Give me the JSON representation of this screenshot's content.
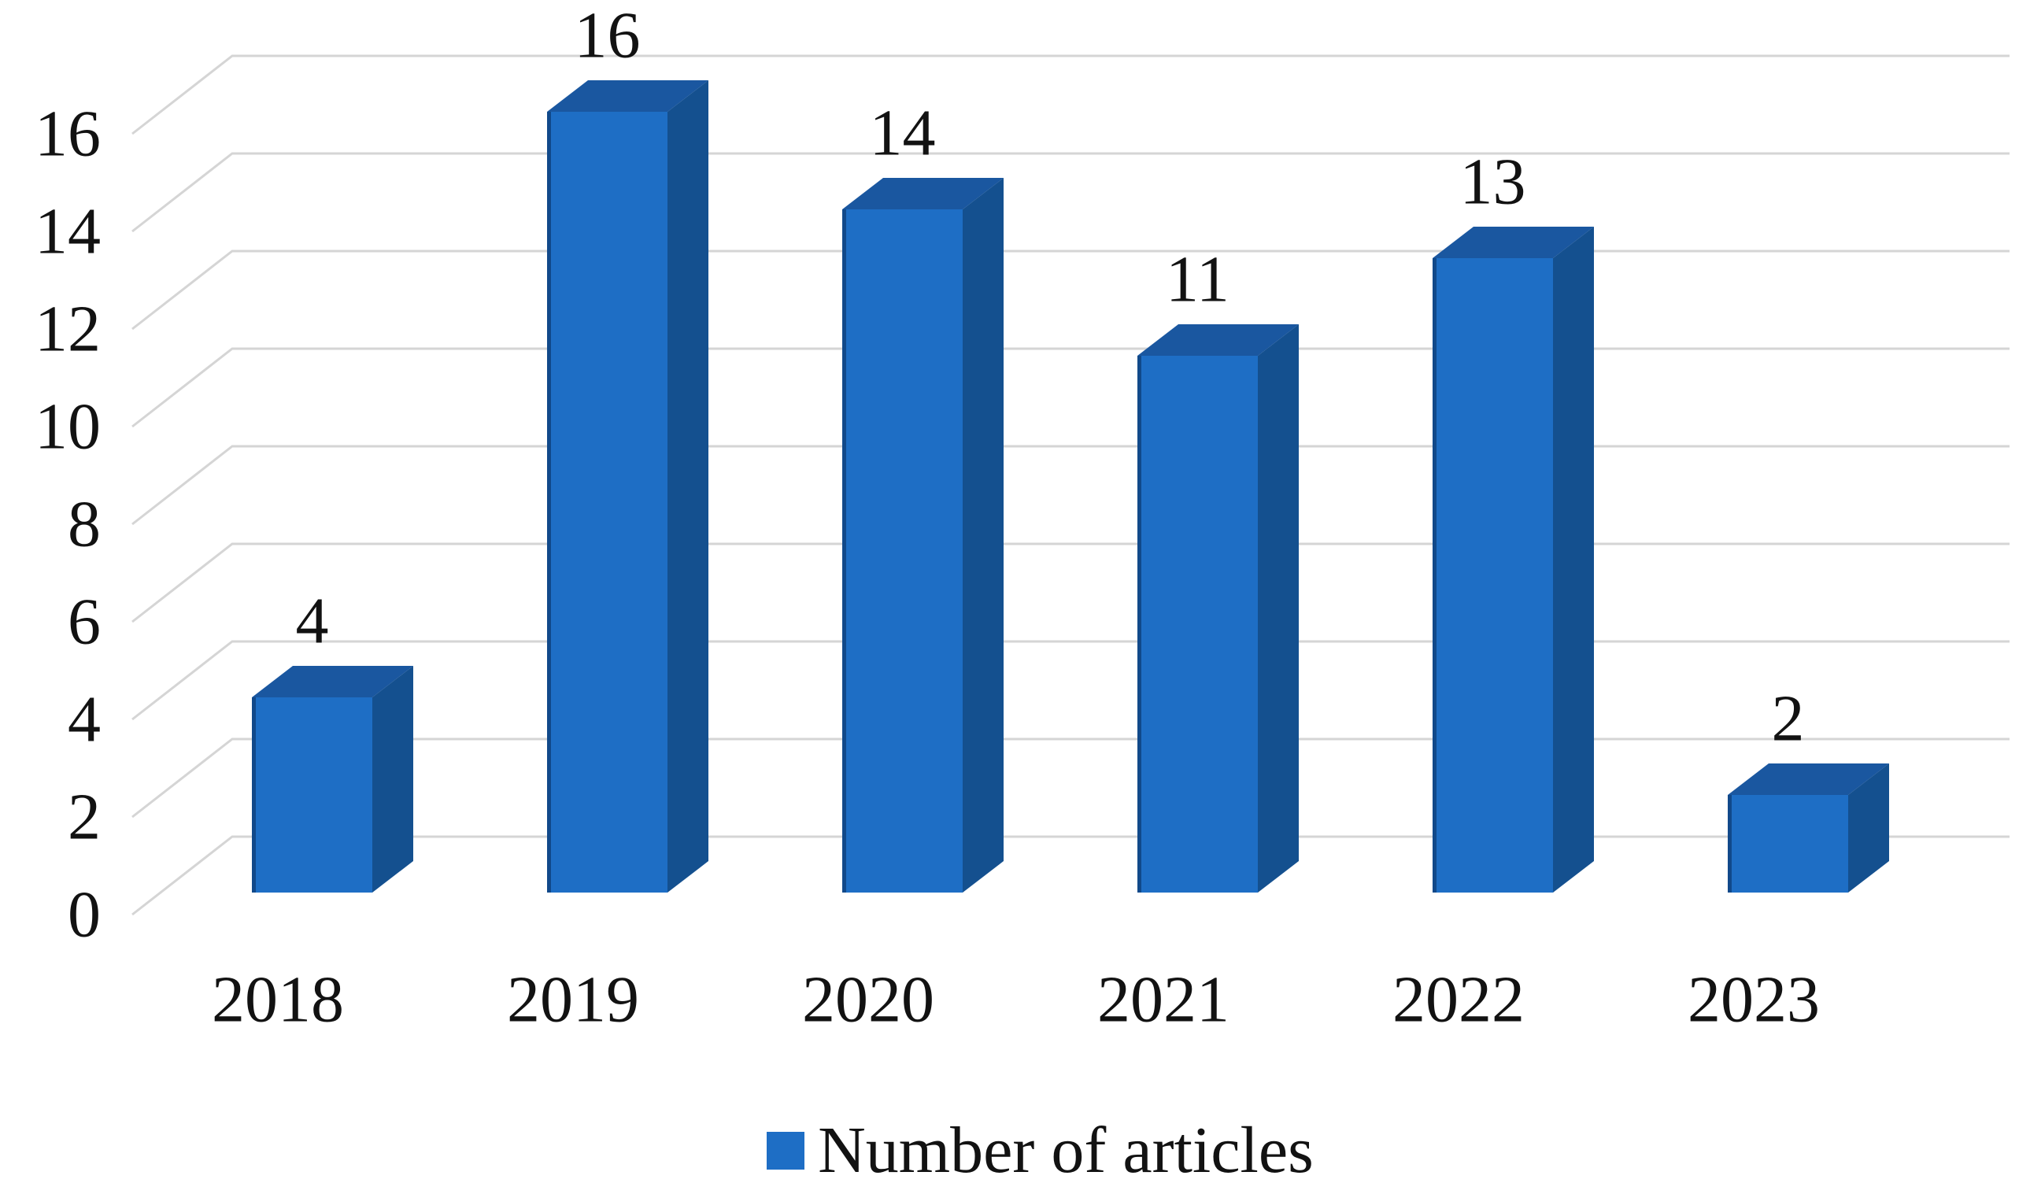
{
  "chart_data": {
    "type": "bar",
    "style": "3d-perspective",
    "categories": [
      "2018",
      "2019",
      "2020",
      "2021",
      "2022",
      "2023"
    ],
    "series": [
      {
        "name": "Number of articles",
        "values": [
          4,
          16,
          14,
          11,
          13,
          2
        ]
      }
    ],
    "data_labels_shown": true,
    "xlabel": "",
    "ylabel": "",
    "ylim": [
      0,
      16
    ],
    "ytick_step": 2,
    "ytick_labels": [
      "0",
      "2",
      "4",
      "6",
      "8",
      "10",
      "12",
      "14",
      "16"
    ],
    "grid": true,
    "legend": {
      "position": "bottom",
      "label": "Number of articles"
    },
    "colors": {
      "bar_front": "#1E6EC5",
      "bar_side": "#14508F",
      "bar_top": "#1A57A0",
      "bar_left_edge": "#11498A",
      "gridline": "#D5D5D5",
      "text": "#121212",
      "background": "#FFFFFF"
    }
  }
}
